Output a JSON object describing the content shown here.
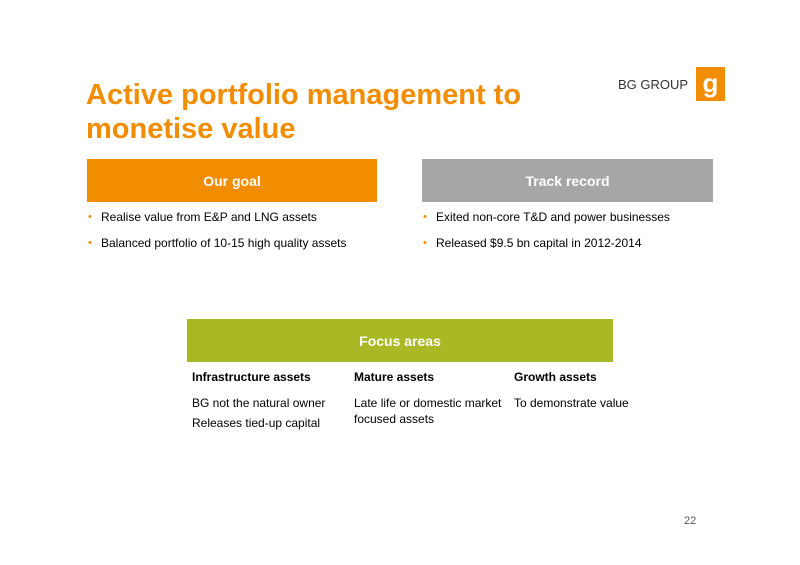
{
  "title": "Active portfolio management to monetise value",
  "logo": {
    "text": "BG GROUP",
    "mark": "g",
    "color": "#f28c00"
  },
  "goal": {
    "header": "Our goal",
    "bullets": [
      "Realise value from E&P and LNG assets",
      "Balanced portfolio of 10-15 high quality assets"
    ]
  },
  "track_record": {
    "header": "Track record",
    "bullets": [
      "Exited non-core T&D and power businesses",
      "Released $9.5 bn capital in 2012-2014"
    ]
  },
  "focus": {
    "header": "Focus areas",
    "columns": [
      {
        "heading": "Infrastructure assets",
        "lines": [
          "BG not the natural owner",
          "Releases tied-up capital"
        ]
      },
      {
        "heading": "Mature assets",
        "lines": [
          "Late life or domestic market focused assets"
        ]
      },
      {
        "heading": "Growth assets",
        "lines": [
          "To demonstrate value"
        ]
      }
    ]
  },
  "page_number": "22",
  "colors": {
    "orange": "#f28c00",
    "grey": "#a6a6a6",
    "green": "#a9b925"
  }
}
